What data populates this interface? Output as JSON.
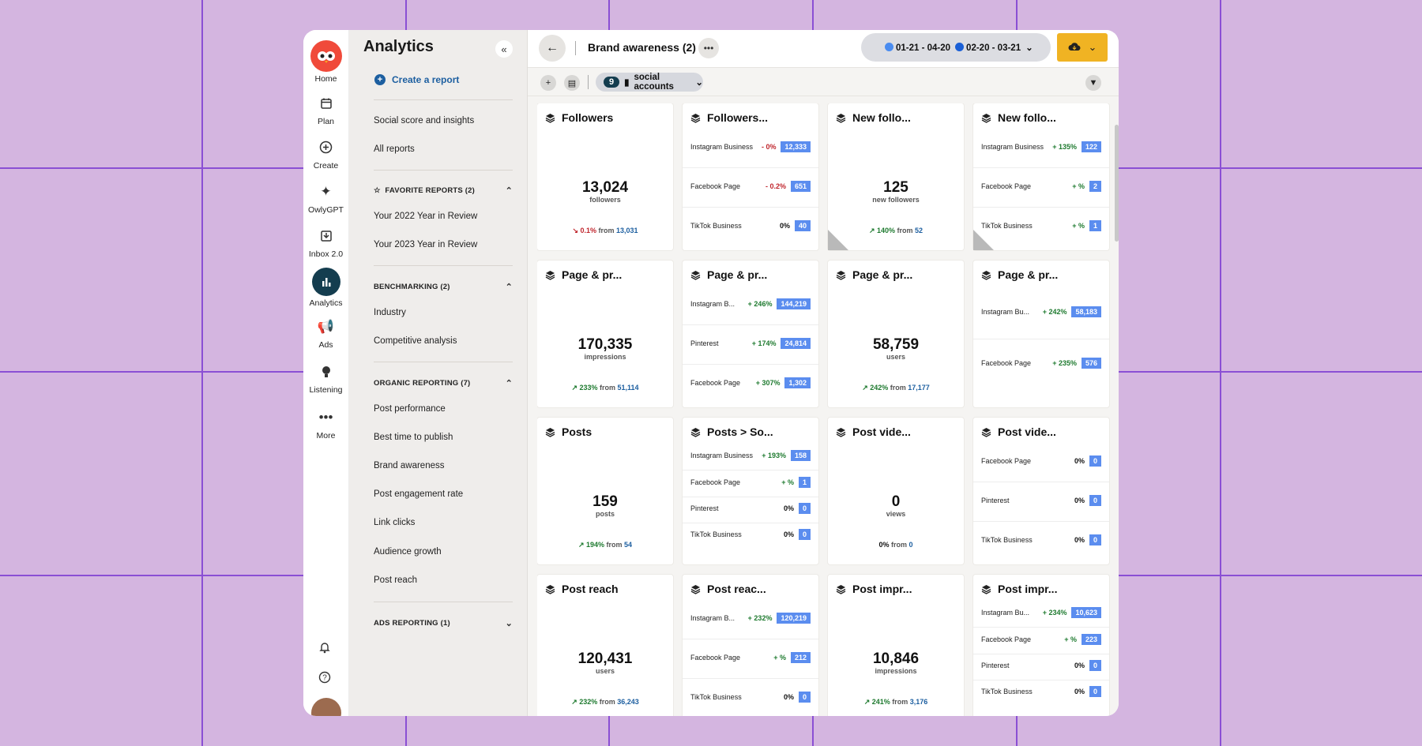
{
  "rail": {
    "items": [
      {
        "label": "Home",
        "icon": "owl-logo"
      },
      {
        "label": "Plan",
        "icon": "calendar-icon"
      },
      {
        "label": "Create",
        "icon": "plus-circle-icon"
      },
      {
        "label": "OwlyGPT",
        "icon": "sparkle-icon"
      },
      {
        "label": "Inbox 2.0",
        "icon": "inbox-icon"
      },
      {
        "label": "Analytics",
        "icon": "bar-chart-icon"
      },
      {
        "label": "Ads",
        "icon": "megaphone-icon"
      },
      {
        "label": "Listening",
        "icon": "bulb-icon"
      },
      {
        "label": "More",
        "icon": "more-icon"
      }
    ]
  },
  "sidebar": {
    "title": "Analytics",
    "create_report": "Create a report",
    "links_top": [
      "Social score and insights",
      "All reports"
    ],
    "favorites": {
      "title": "FAVORITE REPORTS (2)",
      "items": [
        "Your 2022 Year in Review",
        "Your 2023 Year in Review"
      ]
    },
    "benchmarking": {
      "title": "BENCHMARKING (2)",
      "items": [
        "Industry",
        "Competitive analysis"
      ]
    },
    "organic": {
      "title": "ORGANIC REPORTING (7)",
      "items": [
        "Post performance",
        "Best time to publish",
        "Brand awareness",
        "Post engagement rate",
        "Link clicks",
        "Audience growth",
        "Post reach"
      ]
    },
    "ads": {
      "title": "ADS REPORTING (1)"
    }
  },
  "header": {
    "title": "Brand awareness (2)",
    "date_range_1": "01-21 - 04-20",
    "date_range_2": "02-20 - 03-21",
    "date_color_1": "#4a8cf0",
    "date_color_2": "#1a5fd6"
  },
  "subbar": {
    "count": "9",
    "label": "social accounts"
  },
  "cards": [
    {
      "title": "Followers",
      "type": "big",
      "value": "13,024",
      "unit": "followers",
      "delta": "0.1%",
      "from": "13,031",
      "dir": "neg"
    },
    {
      "title": "Followers...",
      "type": "rows",
      "rows": [
        {
          "name": "Instagram Business",
          "change": "- 0%",
          "dir": "neg",
          "value": "12,333"
        },
        {
          "name": "Facebook Page",
          "change": "- 0.2%",
          "dir": "neg",
          "value": "651"
        },
        {
          "name": "TikTok Business",
          "change": "0%",
          "dir": "neutral",
          "value": "40"
        }
      ]
    },
    {
      "title": "New follo...",
      "type": "big",
      "value": "125",
      "unit": "new followers",
      "delta": "140%",
      "from": "52",
      "dir": "pos",
      "warn": true
    },
    {
      "title": "New follo...",
      "type": "rows",
      "warn": true,
      "rows": [
        {
          "name": "Instagram Business",
          "change": "+ 135%",
          "dir": "pos",
          "value": "122"
        },
        {
          "name": "Facebook Page",
          "change": "+ %",
          "dir": "pos",
          "value": "2"
        },
        {
          "name": "TikTok Business",
          "change": "+ %",
          "dir": "pos",
          "value": "1"
        }
      ]
    },
    {
      "title": "Page & pr...",
      "type": "big",
      "value": "170,335",
      "unit": "impressions",
      "delta": "233%",
      "from": "51,114",
      "dir": "pos"
    },
    {
      "title": "Page & pr...",
      "type": "rows",
      "rows": [
        {
          "name": "Instagram B...",
          "change": "+ 246%",
          "dir": "pos",
          "value": "144,219"
        },
        {
          "name": "Pinterest",
          "change": "+ 174%",
          "dir": "pos",
          "value": "24,814"
        },
        {
          "name": "Facebook Page",
          "change": "+ 307%",
          "dir": "pos",
          "value": "1,302"
        }
      ]
    },
    {
      "title": "Page & pr...",
      "type": "big",
      "value": "58,759",
      "unit": "users",
      "delta": "242%",
      "from": "17,177",
      "dir": "pos"
    },
    {
      "title": "Page & pr...",
      "type": "rows2",
      "rows": [
        {
          "name": "Instagram Bu...",
          "change": "+ 242%",
          "dir": "pos",
          "value": "58,183"
        },
        {
          "name": "Facebook Page",
          "change": "+ 235%",
          "dir": "pos",
          "value": "576"
        }
      ]
    },
    {
      "title": "Posts",
      "type": "big",
      "value": "159",
      "unit": "posts",
      "delta": "194%",
      "from": "54",
      "dir": "pos"
    },
    {
      "title": "Posts > So...",
      "type": "rows4",
      "rows": [
        {
          "name": "Instagram Business",
          "change": "+ 193%",
          "dir": "pos",
          "value": "158"
        },
        {
          "name": "Facebook Page",
          "change": "+ %",
          "dir": "pos",
          "value": "1"
        },
        {
          "name": "Pinterest",
          "change": "0%",
          "dir": "neutral",
          "value": "0"
        },
        {
          "name": "TikTok Business",
          "change": "0%",
          "dir": "neutral",
          "value": "0"
        }
      ]
    },
    {
      "title": "Post vide...",
      "type": "big",
      "value": "0",
      "unit": "views",
      "delta": "0%",
      "from": "0",
      "dir": "neutral"
    },
    {
      "title": "Post vide...",
      "type": "rows",
      "rows": [
        {
          "name": "Facebook Page",
          "change": "0%",
          "dir": "neutral",
          "value": "0"
        },
        {
          "name": "Pinterest",
          "change": "0%",
          "dir": "neutral",
          "value": "0"
        },
        {
          "name": "TikTok Business",
          "change": "0%",
          "dir": "neutral",
          "value": "0"
        }
      ]
    },
    {
      "title": "Post reach",
      "type": "big",
      "value": "120,431",
      "unit": "users",
      "delta": "232%",
      "from": "36,243",
      "dir": "pos"
    },
    {
      "title": "Post reac...",
      "type": "rows",
      "rows": [
        {
          "name": "Instagram B...",
          "change": "+ 232%",
          "dir": "pos",
          "value": "120,219"
        },
        {
          "name": "Facebook Page",
          "change": "+ %",
          "dir": "pos",
          "value": "212"
        },
        {
          "name": "TikTok Business",
          "change": "0%",
          "dir": "neutral",
          "value": "0"
        }
      ]
    },
    {
      "title": "Post impr...",
      "type": "big",
      "value": "10,846",
      "unit": "impressions",
      "delta": "241%",
      "from": "3,176",
      "dir": "pos"
    },
    {
      "title": "Post impr...",
      "type": "rows4",
      "rows": [
        {
          "name": "Instagram Bu...",
          "change": "+ 234%",
          "dir": "pos",
          "value": "10,623"
        },
        {
          "name": "Facebook Page",
          "change": "+ %",
          "dir": "pos",
          "value": "223"
        },
        {
          "name": "Pinterest",
          "change": "0%",
          "dir": "neutral",
          "value": "0"
        },
        {
          "name": "TikTok Business",
          "change": "0%",
          "dir": "neutral",
          "value": "0"
        }
      ]
    }
  ]
}
